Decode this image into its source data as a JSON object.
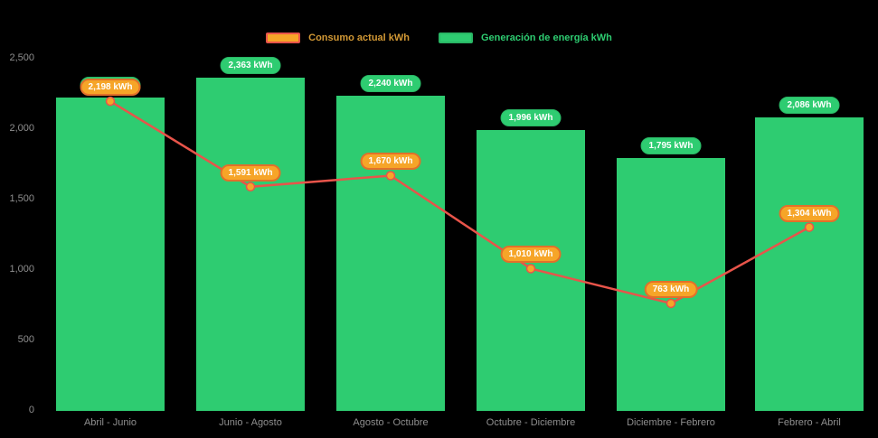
{
  "legend": {
    "consumption_label": "Consumo actual kWh",
    "generation_label": "Generación de energía kWh"
  },
  "colors": {
    "background": "#000000",
    "bar_green": "#2ecc71",
    "bar_green_dark": "#29b765",
    "orange": "#f6a528",
    "orange_border": "#e2702a",
    "line_red": "#e8544a",
    "axis_text": "#8f8f8f",
    "legend_consumption_text": "#d39935"
  },
  "chart_data": {
    "type": "bar",
    "title": "",
    "xlabel": "",
    "ylabel": "",
    "background": "black",
    "grid": false,
    "legend_position": "top",
    "ylim": [
      0,
      2500
    ],
    "y_ticks": [
      "2,500",
      "2,000",
      "1,500",
      "1,000",
      "500",
      "0"
    ],
    "y_tick_values": [
      2500,
      2000,
      1500,
      1000,
      500,
      0
    ],
    "categories": [
      "Abril - Junio",
      "Junio - Agosto",
      "Agosto - Octubre",
      "Octubre - Diciembre",
      "Diciembre - Febrero",
      "Febrero - Abril"
    ],
    "series": [
      {
        "name": "Generación de energía kWh",
        "type": "bar",
        "values": [
          2224,
          2363,
          2240,
          1996,
          1795,
          2086
        ],
        "labels": [
          "2,224 kWh",
          "2,363 kWh",
          "2,240 kWh",
          "1,996 kWh",
          "1,795 kWh",
          "2,086 kWh"
        ]
      },
      {
        "name": "Consumo actual kWh",
        "type": "line",
        "values": [
          2198,
          1591,
          1670,
          1010,
          763,
          1304
        ],
        "labels": [
          "2,198 kWh",
          "1,591 kWh",
          "1,670 kWh",
          "1,010 kWh",
          "763 kWh",
          "1,304 kWh"
        ]
      }
    ]
  }
}
